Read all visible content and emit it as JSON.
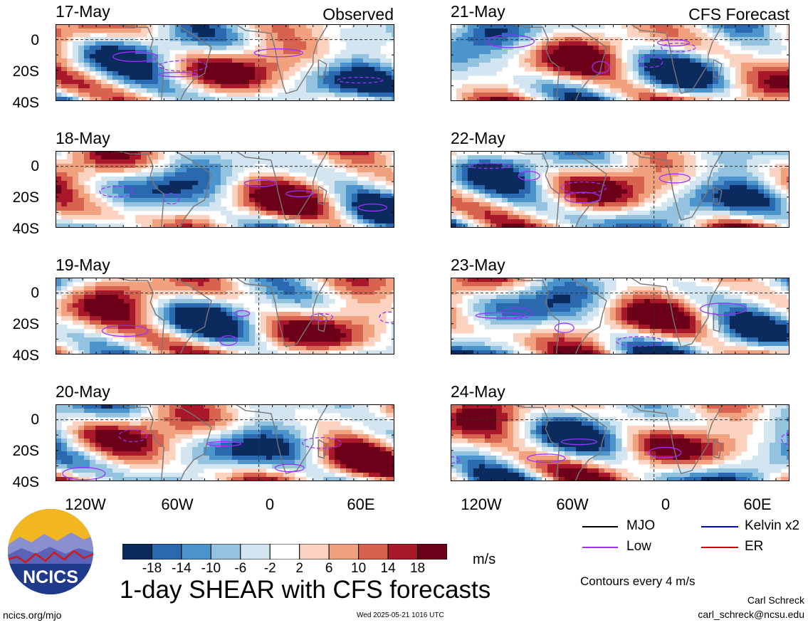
{
  "panels": {
    "left_header": "Observed",
    "right_header": "CFS Forecast",
    "observed_dates": [
      "17-May",
      "18-May",
      "19-May",
      "20-May"
    ],
    "forecast_dates": [
      "21-May",
      "22-May",
      "23-May",
      "24-May"
    ]
  },
  "axes": {
    "lat_labels": [
      "0",
      "20S",
      "40S"
    ],
    "lon_labels": [
      "120W",
      "60W",
      "0",
      "60E"
    ]
  },
  "colorbar": {
    "tick_labels": [
      "-18",
      "-14",
      "-10",
      "-6",
      "-2",
      "2",
      "6",
      "10",
      "14",
      "18"
    ],
    "unit": "m/s",
    "colors": [
      "#0b2b5e",
      "#2a68b0",
      "#4b95cc",
      "#93c3df",
      "#d2e5f1",
      "#ffffff",
      "#fbd3c0",
      "#f2a17e",
      "#d86250",
      "#a8172a",
      "#6b0018"
    ]
  },
  "legend": {
    "items": [
      {
        "label": "MJO",
        "color": "#000000"
      },
      {
        "label": "Kelvin x2",
        "color": "#0000d8"
      },
      {
        "label": "Low",
        "color": "#9b30ff"
      },
      {
        "label": "ER",
        "color": "#cc0000"
      }
    ],
    "note": "Contours every 4 m/s"
  },
  "title": "1-day SHEAR with CFS forecasts",
  "logo": {
    "text": "NCICS"
  },
  "footer": {
    "url": "ncics.org/mjo",
    "timestamp": "Wed 2025-05-21 1016 UTC",
    "author": "Carl Schreck",
    "email": "carl_schreck@ncsu.edu"
  }
}
